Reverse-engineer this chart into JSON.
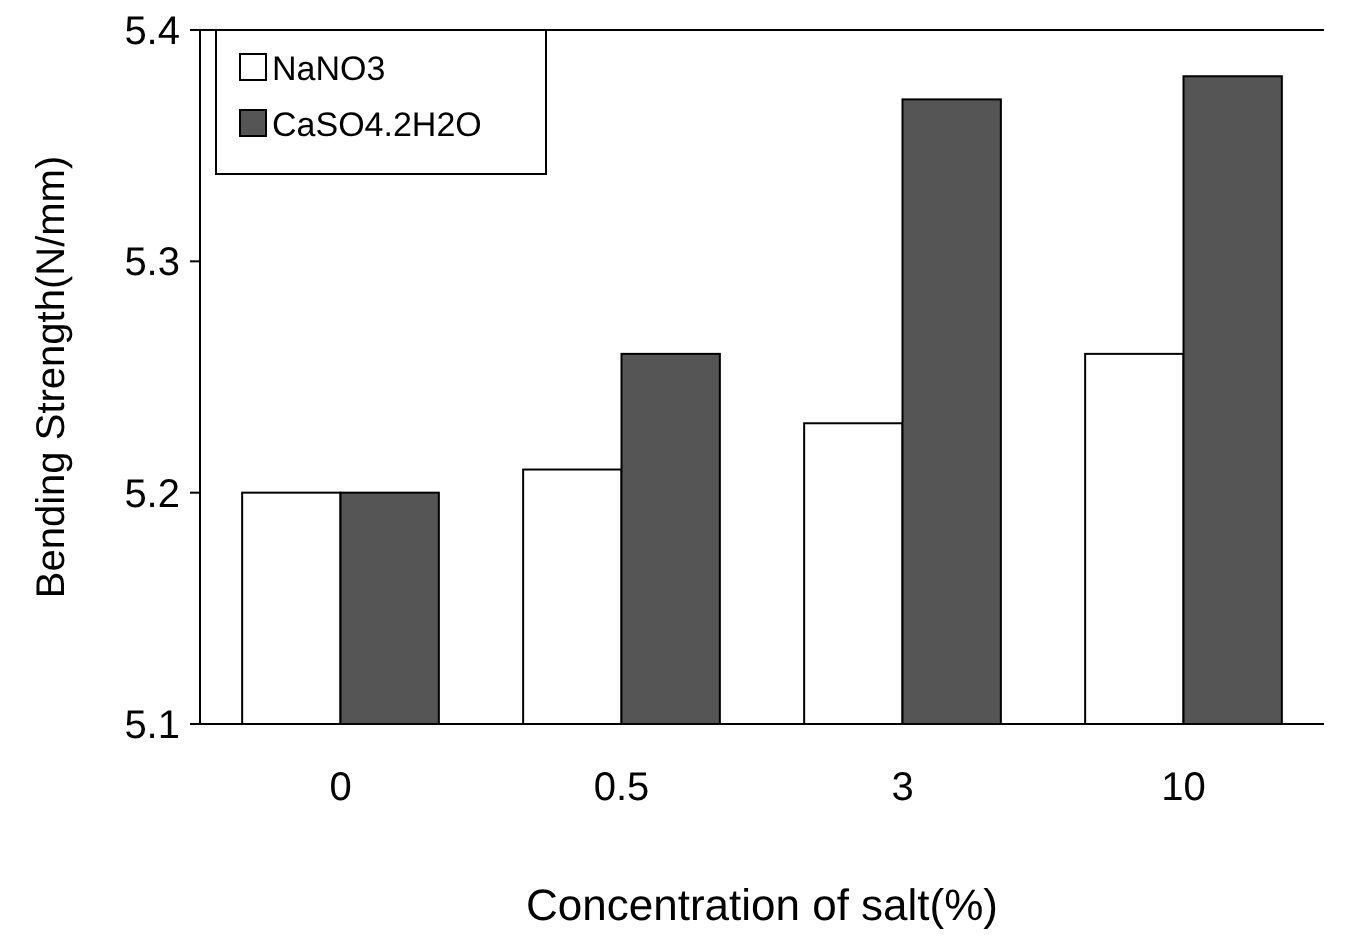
{
  "chart_data": {
    "type": "bar",
    "xlabel": "Concentration of salt(%)",
    "ylabel": "Bending Strength(N/mm)",
    "categories": [
      "0",
      "0.5",
      "3",
      "10"
    ],
    "series": [
      {
        "name": "NaNO3",
        "color": "#ffffff",
        "values": [
          5.2,
          5.21,
          5.23,
          5.26
        ]
      },
      {
        "name": "CaSO4.2H2O",
        "color": "#555555",
        "values": [
          5.2,
          5.26,
          5.37,
          5.38
        ]
      }
    ],
    "ylim": [
      5.1,
      5.4
    ],
    "yticks": [
      {
        "value": 5.1,
        "label": "5.1"
      },
      {
        "value": 5.2,
        "label": "5.2"
      },
      {
        "value": 5.3,
        "label": "5.3"
      },
      {
        "value": 5.4,
        "label": "5.4"
      }
    ],
    "legend": "top left",
    "grid": false
  }
}
